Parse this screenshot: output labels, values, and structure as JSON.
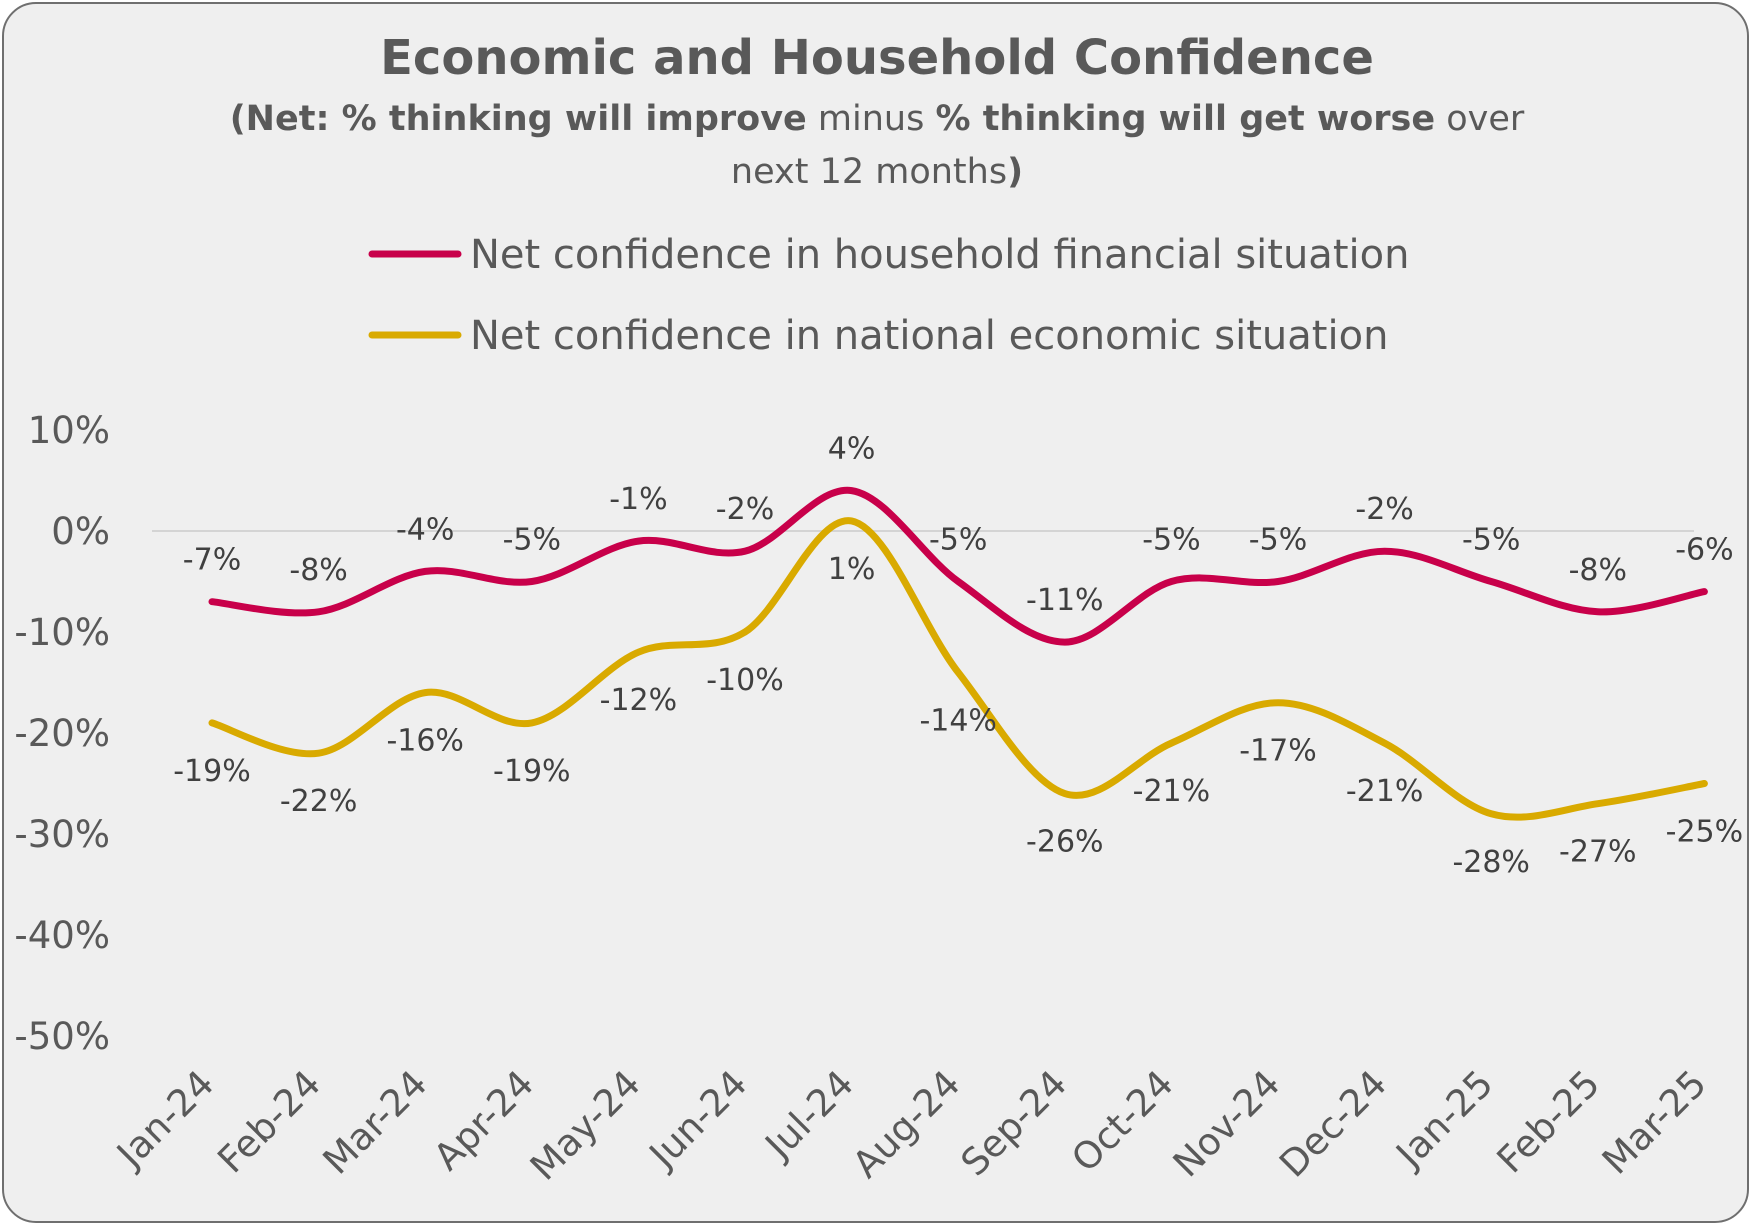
{
  "chart_data": {
    "type": "line",
    "title": "Economic and Household Confidence",
    "subtitle": {
      "line1": [
        {
          "text": "(Net: % thinking will improve",
          "bold": true
        },
        {
          "text": " minus ",
          "bold": false
        },
        {
          "text": "% thinking will get worse",
          "bold": true
        },
        {
          "text": " over",
          "bold": false
        }
      ],
      "line2": [
        {
          "text": "next 12 months",
          "bold": false
        },
        {
          "text": ")",
          "bold": true
        }
      ]
    },
    "categories": [
      "Jan-24",
      "Feb-24",
      "Mar-24",
      "Apr-24",
      "May-24",
      "Jun-24",
      "Jul-24",
      "Aug-24",
      "Sep-24",
      "Oct-24",
      "Nov-24",
      "Dec-24",
      "Jan-25",
      "Feb-25",
      "Mar-25"
    ],
    "series": [
      {
        "name": "Net confidence in household financial situation",
        "color": "#c8004a",
        "values": [
          -7,
          -8,
          -4,
          -5,
          -1,
          -2,
          4,
          -5,
          -11,
          -5,
          -5,
          -2,
          -5,
          -8,
          -6
        ],
        "labels": [
          "-7%",
          "-8%",
          "-4%",
          "-5%",
          "-1%",
          "-2%",
          "4%",
          "-5%",
          "-11%",
          "-5%",
          "-5%",
          "-2%",
          "-5%",
          "-8%",
          "-6%"
        ],
        "label_position": "above"
      },
      {
        "name": "Net confidence in national economic situation",
        "color": "#d9aa00",
        "values": [
          -19,
          -22,
          -16,
          -19,
          -12,
          -10,
          1,
          -14,
          -26,
          -21,
          -17,
          -21,
          -28,
          -27,
          -25
        ],
        "labels": [
          "-19%",
          "-22%",
          "-16%",
          "-19%",
          "-12%",
          "-10%",
          "1%",
          "-14%",
          "-26%",
          "-21%",
          "-17%",
          "-21%",
          "-28%",
          "-27%",
          "-25%"
        ],
        "label_position": "below"
      }
    ],
    "y_ticks": [
      10,
      0,
      -10,
      -20,
      -30,
      -40,
      -50
    ],
    "y_tick_labels": [
      "10%",
      "0%",
      "-10%",
      "-20%",
      "-30%",
      "-40%",
      "-50%"
    ],
    "ylim": [
      -50,
      10
    ],
    "xlabel": "",
    "ylabel": "",
    "grid": false,
    "zero_line": true,
    "legend_position": "top-center"
  }
}
